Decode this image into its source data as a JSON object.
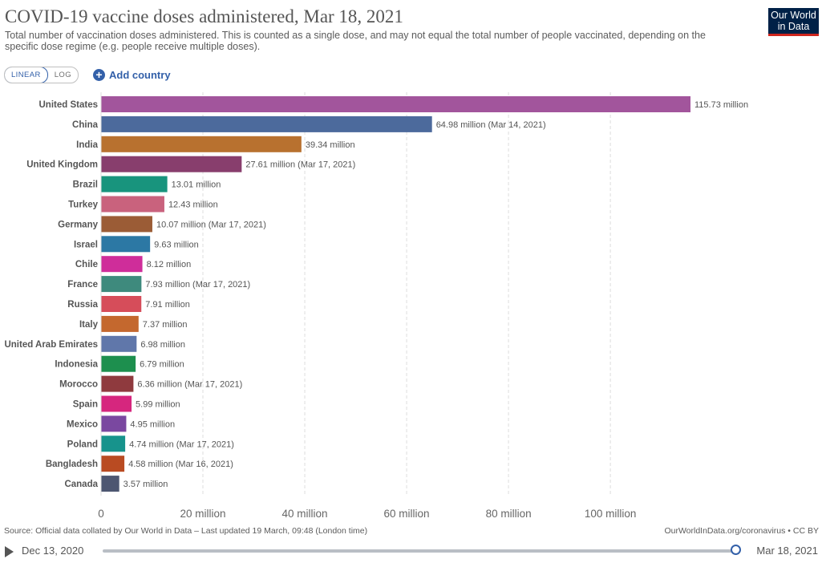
{
  "header": {
    "title": "COVID-19 vaccine doses administered, Mar 18, 2021",
    "subtitle": "Total number of vaccination doses administered. This is counted as a single dose, and may not equal the total number of people vaccinated, depending on the specific dose regime (e.g. people receive multiple doses).",
    "logo_line1": "Our World",
    "logo_line2": "in Data"
  },
  "controls": {
    "linear_label": "LINEAR",
    "log_label": "LOG",
    "add_country_label": "Add country",
    "add_icon": "plus-circle-icon"
  },
  "footer": {
    "source": "Source: Official data collated by Our World in Data – Last updated 19 March, 09:48 (London time)",
    "link": "OurWorldInData.org/coronavirus • CC BY"
  },
  "timeline": {
    "start_label": "Dec 13, 2020",
    "end_label": "Mar 18, 2021",
    "play_icon": "play-icon"
  },
  "chart_data": {
    "type": "bar",
    "orientation": "horizontal",
    "title": "COVID-19 vaccine doses administered, Mar 18, 2021",
    "xlim": [
      0,
      116
    ],
    "x_ticks": [
      0,
      20,
      40,
      60,
      80,
      100
    ],
    "x_tick_labels": [
      "0",
      "20 million",
      "40 million",
      "60 million",
      "80 million",
      "100 million"
    ],
    "grid": "vertical dashed",
    "categories": [
      "United States",
      "China",
      "India",
      "United Kingdom",
      "Brazil",
      "Turkey",
      "Germany",
      "Israel",
      "Chile",
      "France",
      "Russia",
      "Italy",
      "United Arab Emirates",
      "Indonesia",
      "Morocco",
      "Spain",
      "Mexico",
      "Poland",
      "Bangladesh",
      "Canada"
    ],
    "values": [
      115.73,
      64.98,
      39.34,
      27.61,
      13.01,
      12.43,
      10.07,
      9.63,
      8.12,
      7.93,
      7.91,
      7.37,
      6.98,
      6.79,
      6.36,
      5.99,
      4.95,
      4.74,
      4.58,
      3.57
    ],
    "value_labels": [
      "115.73 million",
      "64.98 million (Mar 14, 2021)",
      "39.34 million",
      "27.61 million (Mar 17, 2021)",
      "13.01 million",
      "12.43 million",
      "10.07 million (Mar 17, 2021)",
      "9.63 million",
      "8.12 million",
      "7.93 million (Mar 17, 2021)",
      "7.91 million",
      "7.37 million",
      "6.98 million",
      "6.79 million",
      "6.36 million (Mar 17, 2021)",
      "5.99 million",
      "4.95 million",
      "4.74 million (Mar 17, 2021)",
      "4.58 million (Mar 16, 2021)",
      "3.57 million"
    ],
    "colors": [
      "#a2559c",
      "#4c6a9c",
      "#b8712f",
      "#883e6d",
      "#18947d",
      "#c9627d",
      "#9b5c36",
      "#2c78a4",
      "#cf2d9a",
      "#3e8a7d",
      "#d64d5a",
      "#c4682e",
      "#6077aa",
      "#1d8f4e",
      "#8f3a3e",
      "#d6267e",
      "#7a48a0",
      "#17938c",
      "#b94b22",
      "#4d5671"
    ]
  }
}
